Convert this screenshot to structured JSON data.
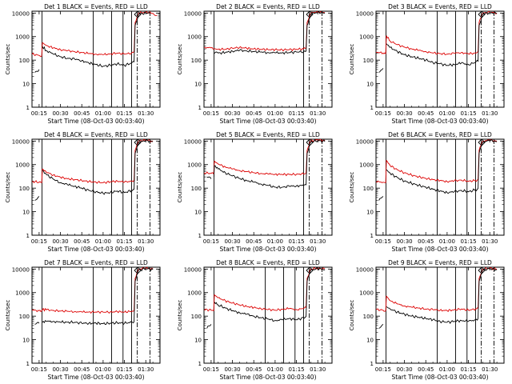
{
  "figure": {
    "shared": {
      "type": "line",
      "ylabel": "Counts/sec",
      "xlabel": "Start Time (08-Oct-03 00:03:40)",
      "y_scale": "log",
      "ylim": [
        1,
        12000
      ],
      "y_ticks": [
        1,
        10,
        100,
        1000,
        10000
      ],
      "y_tick_labels": [
        "1",
        "10",
        "100",
        "1000",
        "10000"
      ],
      "x_range_min": [
        10,
        100
      ],
      "x_ticks_min": [
        15,
        30,
        45,
        60,
        75,
        90
      ],
      "x_tick_labels": [
        "00:15",
        "00:30",
        "00:45",
        "01:00",
        "01:15",
        "01:30"
      ],
      "series_colors": {
        "events": "#000000",
        "lld": "#dd0000"
      },
      "marker": "D"
    }
  },
  "chart_data": [
    {
      "title": "Det 1 BLACK = Events, RED = LLD",
      "type": "line",
      "solid_lines_min": [
        17,
        53,
        66,
        74,
        80
      ],
      "dashdot_lines_min": [
        84,
        93
      ],
      "events": {
        "x": [
          12,
          15,
          17,
          17.3,
          20,
          25,
          30,
          35,
          40,
          45,
          50,
          55,
          60,
          65,
          70,
          75,
          80,
          81.8,
          82.5,
          85,
          90,
          93
        ],
        "y": [
          30,
          40,
          null,
          380,
          260,
          180,
          140,
          120,
          110,
          95,
          75,
          65,
          55,
          60,
          70,
          60,
          75,
          85,
          3000,
          9000,
          10000,
          9500
        ]
      },
      "lld": {
        "x": [
          10,
          15,
          16.8,
          17.3,
          20,
          25,
          30,
          35,
          40,
          45,
          50,
          55,
          60,
          65,
          70,
          75,
          80,
          81.8,
          82.5,
          85,
          90,
          95,
          98
        ],
        "y": [
          180,
          160,
          150,
          550,
          420,
          330,
          280,
          250,
          230,
          210,
          190,
          180,
          170,
          185,
          200,
          180,
          200,
          230,
          4000,
          10000,
          11000,
          9800,
          8000
        ]
      }
    },
    {
      "title": "Det 2 BLACK = Events, RED = LLD",
      "type": "line",
      "solid_lines_min": [
        17,
        80
      ],
      "dashdot_lines_min": [
        84,
        93
      ],
      "events": {
        "x": [
          17,
          20,
          25,
          30,
          35,
          40,
          45,
          50,
          55,
          60,
          65,
          70,
          75,
          80,
          81.8,
          82.5,
          85,
          90,
          95
        ],
        "y": [
          190,
          200,
          210,
          240,
          260,
          250,
          230,
          220,
          210,
          205,
          205,
          210,
          220,
          230,
          240,
          3000,
          9000,
          11000,
          10000
        ]
      },
      "lld": {
        "x": [
          10,
          15,
          17,
          20,
          25,
          30,
          35,
          40,
          45,
          50,
          55,
          60,
          65,
          70,
          75,
          80,
          81.8,
          82.5,
          85,
          90,
          95
        ],
        "y": [
          350,
          330,
          300,
          290,
          290,
          320,
          350,
          320,
          300,
          290,
          280,
          280,
          275,
          280,
          290,
          300,
          320,
          4000,
          10000,
          11500,
          10500
        ]
      }
    },
    {
      "title": "Det 3 BLACK = Events, RED = LLD",
      "type": "line",
      "solid_lines_min": [
        17,
        53,
        66,
        74,
        80
      ],
      "dashdot_lines_min": [
        84,
        93
      ],
      "events": {
        "x": [
          12,
          15,
          17,
          17.3,
          20,
          25,
          30,
          35,
          40,
          45,
          50,
          55,
          60,
          65,
          70,
          75,
          80,
          81.8,
          82.5,
          85,
          90,
          95
        ],
        "y": [
          30,
          45,
          null,
          500,
          350,
          230,
          170,
          140,
          120,
          100,
          80,
          70,
          60,
          65,
          75,
          65,
          80,
          90,
          3000,
          9000,
          10500,
          9500
        ]
      },
      "lld": {
        "x": [
          10,
          15,
          16.8,
          17.3,
          20,
          25,
          30,
          35,
          40,
          45,
          50,
          55,
          60,
          65,
          70,
          75,
          80,
          81.8,
          82.5,
          85,
          90,
          95
        ],
        "y": [
          220,
          200,
          190,
          1100,
          650,
          450,
          360,
          300,
          260,
          230,
          200,
          190,
          180,
          195,
          210,
          185,
          200,
          230,
          4000,
          10000,
          11000,
          10000
        ]
      }
    },
    {
      "title": "Det 4 BLACK = Events, RED = LLD",
      "type": "line",
      "solid_lines_min": [
        17,
        53,
        66,
        74,
        80
      ],
      "dashdot_lines_min": [
        84,
        93
      ],
      "events": {
        "x": [
          12,
          15,
          17,
          17.3,
          20,
          25,
          30,
          35,
          40,
          45,
          50,
          55,
          60,
          65,
          70,
          75,
          80,
          81.8,
          82.5,
          85,
          90,
          95
        ],
        "y": [
          30,
          45,
          null,
          550,
          380,
          240,
          170,
          140,
          120,
          100,
          80,
          70,
          60,
          65,
          75,
          65,
          80,
          90,
          3000,
          9000,
          10500,
          9500
        ]
      },
      "lld": {
        "x": [
          10,
          15,
          16.8,
          17.3,
          20,
          25,
          30,
          35,
          40,
          45,
          50,
          55,
          60,
          65,
          70,
          75,
          80,
          81.8,
          82.5,
          85,
          90,
          95
        ],
        "y": [
          190,
          180,
          170,
          650,
          480,
          360,
          290,
          250,
          230,
          210,
          190,
          180,
          170,
          185,
          200,
          180,
          200,
          220,
          4000,
          10000,
          11000,
          10000
        ]
      }
    },
    {
      "title": "Det 5 BLACK = Events, RED = LLD",
      "type": "line",
      "solid_lines_min": [
        17,
        80
      ],
      "dashdot_lines_min": [
        84,
        93
      ],
      "events": {
        "x": [
          12,
          15,
          15.5,
          17,
          17.3,
          20,
          25,
          30,
          35,
          40,
          45,
          50,
          55,
          60,
          65,
          70,
          75,
          80,
          81.8,
          82.5,
          85,
          90,
          95
        ],
        "y": [
          300,
          250,
          null,
          300,
          900,
          650,
          450,
          330,
          260,
          210,
          180,
          150,
          130,
          110,
          110,
          120,
          125,
          130,
          140,
          3000,
          9000,
          10500,
          9500
        ]
      },
      "lld": {
        "x": [
          10,
          15,
          16.8,
          17.3,
          20,
          25,
          30,
          35,
          40,
          45,
          50,
          55,
          60,
          65,
          70,
          75,
          80,
          81.8,
          82.5,
          85,
          90,
          95
        ],
        "y": [
          450,
          420,
          400,
          1400,
          1050,
          800,
          650,
          560,
          500,
          450,
          420,
          400,
          390,
          380,
          380,
          390,
          400,
          420,
          4000,
          10000,
          11500,
          10500
        ]
      }
    },
    {
      "title": "Det 6 BLACK = Events, RED = LLD",
      "type": "line",
      "solid_lines_min": [
        17,
        53,
        66,
        74,
        80
      ],
      "dashdot_lines_min": [
        84,
        93
      ],
      "events": {
        "x": [
          12,
          15,
          17,
          17.3,
          20,
          25,
          30,
          35,
          40,
          45,
          50,
          55,
          60,
          65,
          70,
          75,
          80,
          81.8,
          82.5,
          85,
          90,
          95
        ],
        "y": [
          30,
          45,
          null,
          600,
          420,
          280,
          200,
          160,
          130,
          110,
          90,
          75,
          65,
          70,
          80,
          70,
          85,
          95,
          3000,
          9000,
          10500,
          9500
        ]
      },
      "lld": {
        "x": [
          10,
          15,
          16.8,
          17.3,
          20,
          25,
          30,
          35,
          40,
          45,
          50,
          55,
          60,
          65,
          70,
          75,
          80,
          81.8,
          82.5,
          85,
          90,
          95
        ],
        "y": [
          190,
          180,
          170,
          1500,
          900,
          600,
          450,
          360,
          300,
          260,
          230,
          210,
          190,
          205,
          220,
          195,
          210,
          230,
          4000,
          10000,
          11000,
          10000
        ]
      }
    },
    {
      "title": "Det 7 BLACK = Events, RED = LLD",
      "type": "line",
      "solid_lines_min": [
        17,
        53,
        66,
        74,
        80
      ],
      "dashdot_lines_min": [
        84,
        93
      ],
      "events": {
        "x": [
          12,
          15,
          17,
          17.3,
          20,
          25,
          30,
          35,
          40,
          45,
          50,
          55,
          60,
          65,
          70,
          75,
          80,
          81.8,
          82.5,
          85,
          90,
          95
        ],
        "y": [
          45,
          50,
          null,
          55,
          60,
          60,
          55,
          55,
          55,
          50,
          50,
          50,
          48,
          50,
          52,
          50,
          55,
          58,
          3000,
          9000,
          10500,
          9500
        ]
      },
      "lld": {
        "x": [
          10,
          15,
          16.8,
          17.3,
          20,
          25,
          30,
          35,
          40,
          45,
          50,
          55,
          60,
          65,
          70,
          75,
          80,
          81.8,
          82.5,
          85,
          90,
          95
        ],
        "y": [
          180,
          170,
          165,
          190,
          185,
          175,
          165,
          160,
          155,
          150,
          150,
          150,
          148,
          150,
          155,
          150,
          160,
          170,
          4000,
          10000,
          11000,
          10000
        ]
      }
    },
    {
      "title": "Det 8 BLACK = Events, RED = LLD",
      "type": "line",
      "solid_lines_min": [
        17,
        53,
        66,
        74,
        80
      ],
      "dashdot_lines_min": [
        84,
        93
      ],
      "events": {
        "x": [
          12,
          15,
          17,
          17.3,
          20,
          25,
          30,
          35,
          40,
          45,
          50,
          55,
          60,
          65,
          70,
          75,
          80,
          81.8,
          82.5,
          85,
          90,
          95
        ],
        "y": [
          30,
          45,
          null,
          400,
          300,
          220,
          170,
          140,
          120,
          100,
          85,
          75,
          65,
          70,
          80,
          70,
          85,
          95,
          3000,
          9000,
          10500,
          9500
        ]
      },
      "lld": {
        "x": [
          10,
          15,
          16.8,
          17.3,
          20,
          25,
          30,
          35,
          40,
          45,
          50,
          55,
          60,
          65,
          70,
          75,
          80,
          81.8,
          82.5,
          85,
          90,
          95
        ],
        "y": [
          190,
          180,
          170,
          800,
          600,
          450,
          360,
          300,
          260,
          230,
          210,
          190,
          180,
          195,
          210,
          190,
          210,
          230,
          4000,
          10000,
          11000,
          10000
        ]
      }
    },
    {
      "title": "Det 9 BLACK = Events, RED = LLD",
      "type": "line",
      "solid_lines_min": [
        17,
        53,
        66,
        74,
        80
      ],
      "dashdot_lines_min": [
        84,
        93
      ],
      "events": {
        "x": [
          12,
          15,
          17,
          17.3,
          20,
          25,
          30,
          35,
          40,
          45,
          50,
          55,
          60,
          65,
          70,
          75,
          80,
          81.8,
          82.5,
          85,
          90,
          95
        ],
        "y": [
          30,
          45,
          null,
          250,
          200,
          150,
          120,
          100,
          90,
          80,
          70,
          60,
          55,
          60,
          65,
          60,
          70,
          80,
          3000,
          9000,
          10500,
          9500
        ]
      },
      "lld": {
        "x": [
          10,
          15,
          16.8,
          17.3,
          20,
          25,
          30,
          35,
          40,
          45,
          50,
          55,
          60,
          65,
          70,
          75,
          80,
          81.8,
          82.5,
          85,
          90,
          95
        ],
        "y": [
          190,
          180,
          170,
          700,
          450,
          330,
          270,
          240,
          220,
          200,
          190,
          180,
          170,
          185,
          200,
          180,
          200,
          220,
          4000,
          10000,
          11000,
          10000
        ]
      }
    }
  ]
}
